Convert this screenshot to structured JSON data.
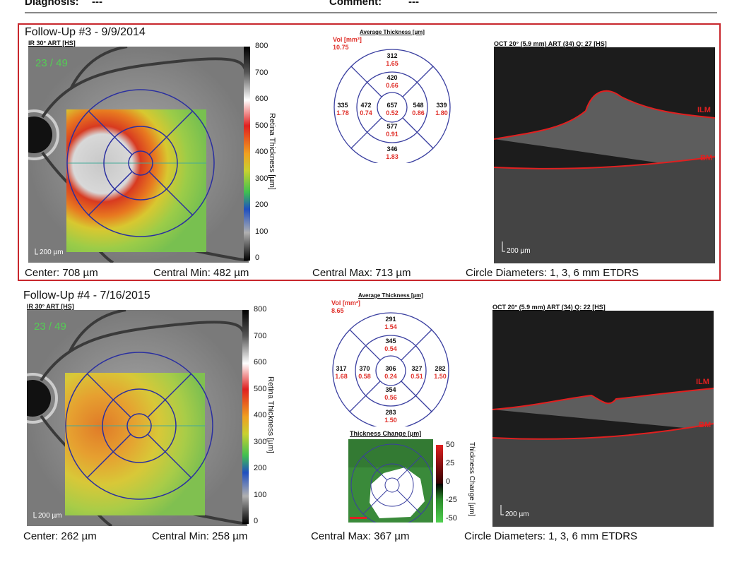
{
  "header": {
    "diagnosis_label": "Diagnosis:",
    "diagnosis_value": "---",
    "comment_label": "Comment:",
    "comment_value": "---"
  },
  "colors": {
    "selected_border": "#c8272d",
    "circle": "#3a3fa0",
    "value": "#111111",
    "volume": "#e0302a"
  },
  "panels": [
    {
      "title": "Follow-Up #3 - 9/9/2014",
      "ir_label": "IR 30° ART [HS]",
      "overlay_text": "23 / 49",
      "scale_label": "200 µm",
      "colorbar_ticks": [
        "800",
        "700",
        "600",
        "500",
        "400",
        "300",
        "200",
        "100",
        "0"
      ],
      "colorbar_label": "Retina Thickness [µm]",
      "etdrs": {
        "title": "Average Thickness [µm]",
        "vol_label": "Vol [mm³]",
        "vol_total": "10.75",
        "sectors": {
          "center": [
            "657",
            "0.52"
          ],
          "inner_sup": [
            "420",
            "0.66"
          ],
          "inner_inf": [
            "577",
            "0.91"
          ],
          "inner_left": [
            "472",
            "0.74"
          ],
          "inner_right": [
            "548",
            "0.86"
          ],
          "outer_sup": [
            "312",
            "1.65"
          ],
          "outer_inf": [
            "346",
            "1.83"
          ],
          "outer_left": [
            "335",
            "1.78"
          ],
          "outer_right": [
            "339",
            "1.80"
          ]
        }
      },
      "oct_label": "OCT 20° (5.9 mm) ART (34) Q: 27 [HS]",
      "ilm": "ILM",
      "bm": "BM",
      "footer": {
        "center": "Center: 708 µm",
        "min": "Central Min: 482 µm",
        "max": "Central Max: 713 µm",
        "diam": "Circle Diameters:  1, 3, 6 mm ETDRS"
      }
    },
    {
      "title": "Follow-Up #4 - 7/16/2015",
      "ir_label": "IR 30° ART [HS]",
      "overlay_text": "23 / 49",
      "scale_label": "200 µm",
      "colorbar_ticks": [
        "800",
        "700",
        "600",
        "500",
        "400",
        "300",
        "200",
        "100",
        "0"
      ],
      "colorbar_label": "Retina Thickness [µm]",
      "etdrs": {
        "title": "Average Thickness [µm]",
        "vol_label": "Vol [mm³]",
        "vol_total": "8.65",
        "sectors": {
          "center": [
            "306",
            "0.24"
          ],
          "inner_sup": [
            "345",
            "0.54"
          ],
          "inner_inf": [
            "354",
            "0.56"
          ],
          "inner_left": [
            "370",
            "0.58"
          ],
          "inner_right": [
            "327",
            "0.51"
          ],
          "outer_sup": [
            "291",
            "1.54"
          ],
          "outer_inf": [
            "283",
            "1.50"
          ],
          "outer_left": [
            "317",
            "1.68"
          ],
          "outer_right": [
            "282",
            "1.50"
          ]
        }
      },
      "change": {
        "title": "Thickness Change [µm]",
        "ticks": [
          "50",
          "25",
          "0",
          "-25",
          "-50"
        ],
        "label": "Thickness Change [µm]"
      },
      "oct_label": "OCT 20° (5.9 mm) ART (34) Q: 22 [HS]",
      "ilm": "ILM",
      "bm": "BM",
      "footer": {
        "center": "Center: 262 µm",
        "min": "Central Min: 258 µm",
        "max": "Central Max: 367 µm",
        "diam": "Circle Diameters:  1, 3, 6 mm ETDRS"
      }
    }
  ]
}
